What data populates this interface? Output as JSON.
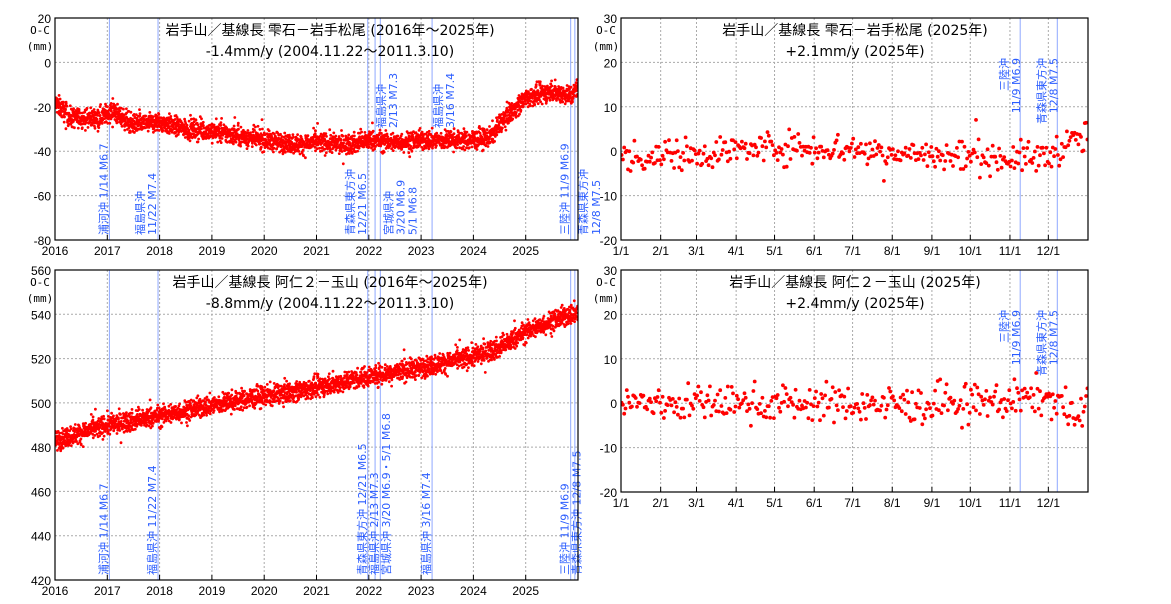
{
  "colors": {
    "points": "#ff0000",
    "event_line": "#8fa8ff",
    "event_text": "#2a5cff",
    "grid": "#aaaaaa"
  },
  "y_unit_label": "O-C",
  "y_unit_sub": "(mm)",
  "chart_data": [
    {
      "type": "scatter",
      "title": "岩手山／基線長 雫石－岩手松尾 (2016年～2025年)",
      "subtitle": "-1.4mm/y (2004.11.22～2011.3.10)",
      "xlim": [
        2016,
        2026
      ],
      "ylim": [
        -80,
        20
      ],
      "x_ticks": [
        2016,
        2017,
        2018,
        2019,
        2020,
        2021,
        2022,
        2023,
        2024,
        2025
      ],
      "x_tick_labels": [
        "2016",
        "2017",
        "2018",
        "2019",
        "2020",
        "2021",
        "2022",
        "2023",
        "2024",
        "2025"
      ],
      "y_ticks": [
        -80,
        -60,
        -40,
        -20,
        0,
        20
      ],
      "y_tick_labels": [
        "-80",
        "-60",
        "-40",
        "-20",
        "0",
        "20"
      ],
      "trend": [
        [
          2016.0,
          -18
        ],
        [
          2016.3,
          -25
        ],
        [
          2016.8,
          -25
        ],
        [
          2017.1,
          -22
        ],
        [
          2017.5,
          -28
        ],
        [
          2018.0,
          -27
        ],
        [
          2018.5,
          -30
        ],
        [
          2019.0,
          -31
        ],
        [
          2019.5,
          -33
        ],
        [
          2020.0,
          -35
        ],
        [
          2020.7,
          -37
        ],
        [
          2021.0,
          -36
        ],
        [
          2021.6,
          -37
        ],
        [
          2022.0,
          -35
        ],
        [
          2022.5,
          -36
        ],
        [
          2023.0,
          -35
        ],
        [
          2023.5,
          -35
        ],
        [
          2024.0,
          -35
        ],
        [
          2024.3,
          -34
        ],
        [
          2024.6,
          -25
        ],
        [
          2025.0,
          -16
        ],
        [
          2025.5,
          -13
        ],
        [
          2025.9,
          -15
        ],
        [
          2026.0,
          -10
        ]
      ],
      "scatter_sd": 2.2,
      "events": [
        {
          "x": 2017.04,
          "lines": [
            "浦河沖 1/14 M6.7"
          ],
          "pos": "bottom"
        },
        {
          "x": 2017.97,
          "lines": [
            "福島県沖",
            "11/22 M7.4"
          ],
          "pos": "bottom"
        },
        {
          "x": 2021.98,
          "lines": [
            "青森県東方沖",
            "12/21 M6.5"
          ],
          "pos": "bottom"
        },
        {
          "x": 2022.12,
          "lines": [
            "福島県沖",
            "2/13 M7.3"
          ],
          "pos": "top"
        },
        {
          "x": 2022.22,
          "lines": [
            "宮城県沖",
            "3/20 M6.9",
            "5/1 M6.8"
          ],
          "pos": "bottom2"
        },
        {
          "x": 2023.21,
          "lines": [
            "福島県沖",
            "3/16 M7.4"
          ],
          "pos": "top"
        },
        {
          "x": 2025.86,
          "lines": [
            "三陸沖 11/9 M6.9"
          ],
          "pos": "bottom"
        },
        {
          "x": 2025.94,
          "lines": [
            "青森県東方沖",
            "12/8 M7.5"
          ],
          "pos": "right"
        }
      ]
    },
    {
      "type": "scatter",
      "title": "岩手山／基線長 雫石－岩手松尾 (2025年)",
      "subtitle": "+2.1mm/y  (2025年)",
      "xlim": [
        0,
        365
      ],
      "ylim": [
        -20,
        30
      ],
      "x_ticks": [
        0,
        31,
        59,
        90,
        120,
        151,
        181,
        212,
        243,
        273,
        304,
        334
      ],
      "x_tick_labels": [
        "1/1",
        "2/1",
        "3/1",
        "4/1",
        "5/1",
        "6/1",
        "7/1",
        "8/1",
        "9/1",
        "10/1",
        "11/1",
        "12/1"
      ],
      "y_ticks": [
        -20,
        -10,
        0,
        10,
        20,
        30
      ],
      "y_tick_labels": [
        "-20",
        "-10",
        "0",
        "10",
        "20",
        "30"
      ],
      "trend": [
        [
          0,
          -1.5
        ],
        [
          60,
          -0.5
        ],
        [
          120,
          1
        ],
        [
          180,
          0.5
        ],
        [
          240,
          -1
        ],
        [
          300,
          -1.5
        ],
        [
          330,
          -1.5
        ],
        [
          350,
          2
        ],
        [
          365,
          3
        ]
      ],
      "scatter_sd": 1.8,
      "events": [
        {
          "x": 312,
          "lines": [
            "三陸沖",
            "11/9 M6.9"
          ],
          "pos": "top"
        },
        {
          "x": 341,
          "lines": [
            "青森県東方沖",
            "12/8 M7.5"
          ],
          "pos": "top"
        }
      ]
    },
    {
      "type": "scatter",
      "title": "岩手山／基線長 阿仁２－玉山 (2016年～2025年)",
      "subtitle": "-8.8mm/y (2004.11.22～2011.3.10)",
      "xlim": [
        2016,
        2026
      ],
      "ylim": [
        420,
        560
      ],
      "x_ticks": [
        2016,
        2017,
        2018,
        2019,
        2020,
        2021,
        2022,
        2023,
        2024,
        2025
      ],
      "x_tick_labels": [
        "2016",
        "2017",
        "2018",
        "2019",
        "2020",
        "2021",
        "2022",
        "2023",
        "2024",
        "2025"
      ],
      "y_ticks": [
        420,
        440,
        460,
        480,
        500,
        520,
        540,
        560
      ],
      "y_tick_labels": [
        "420",
        "440",
        "460",
        "480",
        "500",
        "520",
        "540",
        "560"
      ],
      "trend": [
        [
          2016.0,
          483
        ],
        [
          2017.0,
          490
        ],
        [
          2018.0,
          494
        ],
        [
          2019.0,
          499
        ],
        [
          2020.0,
          503
        ],
        [
          2021.0,
          507
        ],
        [
          2022.0,
          512
        ],
        [
          2023.0,
          516
        ],
        [
          2024.0,
          521
        ],
        [
          2024.5,
          525
        ],
        [
          2025.0,
          532
        ],
        [
          2025.5,
          537
        ],
        [
          2026.0,
          541
        ]
      ],
      "scatter_sd": 2.3,
      "events": [
        {
          "x": 2017.04,
          "lines": [
            "浦河沖 1/14 M6.7"
          ],
          "pos": "bottom"
        },
        {
          "x": 2017.97,
          "lines": [
            "福島県沖 11/22 M7.4"
          ],
          "pos": "bottom"
        },
        {
          "x": 2021.98,
          "lines": [
            "青森県東方沖 12/21 M6.5"
          ],
          "pos": "bottom"
        },
        {
          "x": 2022.12,
          "lines": [
            "福島県沖 2/13 M7.3"
          ],
          "pos": "bottom"
        },
        {
          "x": 2022.22,
          "lines": [
            "宮城県沖 3/20 M6.9・5/1 M6.8"
          ],
          "pos": "bottom"
        },
        {
          "x": 2023.21,
          "lines": [
            "福島県沖 3/16 M7.4"
          ],
          "pos": "bottom"
        },
        {
          "x": 2025.86,
          "lines": [
            "三陸沖 11/9 M6.9"
          ],
          "pos": "bottom"
        },
        {
          "x": 2025.94,
          "lines": [
            "青森県東方沖 12/8 M7.5"
          ],
          "pos": "bottom"
        }
      ]
    },
    {
      "type": "scatter",
      "title": "岩手山／基線長 阿仁２－玉山 (2025年)",
      "subtitle": "+2.4mm/y  (2025年)",
      "xlim": [
        0,
        365
      ],
      "ylim": [
        -20,
        30
      ],
      "x_ticks": [
        0,
        31,
        59,
        90,
        120,
        151,
        181,
        212,
        243,
        273,
        304,
        334
      ],
      "x_tick_labels": [
        "1/1",
        "2/1",
        "3/1",
        "4/1",
        "5/1",
        "6/1",
        "7/1",
        "8/1",
        "9/1",
        "10/1",
        "11/1",
        "12/1"
      ],
      "y_ticks": [
        -20,
        -10,
        0,
        10,
        20,
        30
      ],
      "y_tick_labels": [
        "-20",
        "-10",
        "0",
        "10",
        "20",
        "30"
      ],
      "trend": [
        [
          0,
          0
        ],
        [
          60,
          0
        ],
        [
          150,
          0
        ],
        [
          240,
          -0.5
        ],
        [
          300,
          0.5
        ],
        [
          330,
          1.5
        ],
        [
          345,
          0
        ],
        [
          355,
          -4
        ],
        [
          365,
          -1
        ]
      ],
      "scatter_sd": 2.1,
      "events": [
        {
          "x": 312,
          "lines": [
            "三陸沖",
            "11/9 M6.9"
          ],
          "pos": "top"
        },
        {
          "x": 341,
          "lines": [
            "青森県東方沖",
            "12/8 M7.5"
          ],
          "pos": "top"
        }
      ]
    }
  ]
}
